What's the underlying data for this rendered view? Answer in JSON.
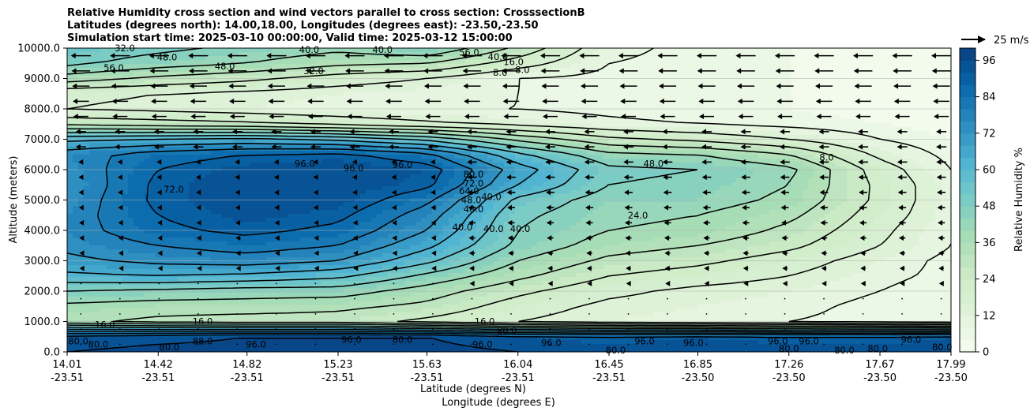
{
  "chart_data": {
    "type": "heatmap",
    "title_lines": [
      "Relative Humidity cross section and wind vectors parallel to cross section: CrosssectionB",
      "Latitudes (degrees north): 14.00,18.00, Longitudes (degrees east): -23.50,-23.50",
      "Simulation start time: 2025-03-10 00:00:00, Valid time: 2025-03-12 15:00:00"
    ],
    "xlabel": "Latitude (degrees N)",
    "xlabel2": "Longitude (degrees E)",
    "ylabel": "Altitude (meters)",
    "ylim": [
      0,
      10000
    ],
    "xlim": [
      14.01,
      17.99
    ],
    "grid": "horizontal",
    "y_ticks": [
      0,
      1000,
      2000,
      3000,
      4000,
      5000,
      6000,
      7000,
      8000,
      9000,
      10000
    ],
    "y_tick_labels": [
      "0.0",
      "1000.0",
      "2000.0",
      "3000.0",
      "4000.0",
      "5000.0",
      "6000.0",
      "7000.0",
      "8000.0",
      "9000.0",
      "10000.0"
    ],
    "x_ticks": [
      {
        "lat": 14.01,
        "lat_label": "14.01",
        "lon_label": "-23.51"
      },
      {
        "lat": 14.42,
        "lat_label": "14.42",
        "lon_label": "-23.51"
      },
      {
        "lat": 14.82,
        "lat_label": "14.82",
        "lon_label": "-23.51"
      },
      {
        "lat": 15.23,
        "lat_label": "15.23",
        "lon_label": "-23.51"
      },
      {
        "lat": 15.63,
        "lat_label": "15.63",
        "lon_label": "-23.51"
      },
      {
        "lat": 16.04,
        "lat_label": "16.04",
        "lon_label": "-23.51"
      },
      {
        "lat": 16.45,
        "lat_label": "16.45",
        "lon_label": "-23.51"
      },
      {
        "lat": 16.85,
        "lat_label": "16.85",
        "lon_label": "-23.50"
      },
      {
        "lat": 17.26,
        "lat_label": "17.26",
        "lon_label": "-23.50"
      },
      {
        "lat": 17.67,
        "lat_label": "17.67",
        "lon_label": "-23.50"
      },
      {
        "lat": 17.99,
        "lat_label": "17.99",
        "lon_label": "-23.50"
      }
    ],
    "colorbar": {
      "label": "Relative Humidity %",
      "min": 0,
      "max": 100,
      "step": 4,
      "ticks": [
        0,
        12,
        24,
        36,
        48,
        60,
        72,
        84,
        96
      ],
      "tick_labels": [
        "0",
        "12",
        "24",
        "36",
        "48",
        "60",
        "72",
        "84",
        "96"
      ]
    },
    "quiver_key": {
      "label": "25 m/s"
    },
    "rh_field": {
      "lats": [
        14.01,
        14.42,
        14.82,
        15.23,
        15.63,
        16.04,
        16.45,
        16.85,
        17.26,
        17.67,
        17.99
      ],
      "alts": [
        0,
        500,
        1000,
        1500,
        2000,
        2500,
        3000,
        3500,
        4000,
        4500,
        5000,
        5500,
        6000,
        6500,
        7000,
        7500,
        8000,
        8500,
        9000,
        9500,
        10000
      ],
      "values": [
        [
          96,
          98,
          98,
          98,
          98,
          96,
          94,
          95,
          94,
          94,
          94
        ],
        [
          92,
          94,
          96,
          96,
          96,
          92,
          90,
          92,
          90,
          90,
          92
        ],
        [
          34,
          30,
          28,
          28,
          22,
          16,
          12,
          10,
          8,
          6,
          4
        ],
        [
          38,
          36,
          36,
          34,
          30,
          20,
          14,
          12,
          10,
          6,
          4
        ],
        [
          48,
          46,
          44,
          44,
          36,
          26,
          18,
          14,
          12,
          8,
          4
        ],
        [
          62,
          64,
          62,
          58,
          46,
          34,
          24,
          20,
          16,
          10,
          6
        ],
        [
          70,
          74,
          76,
          72,
          58,
          40,
          30,
          26,
          20,
          12,
          6
        ],
        [
          74,
          80,
          84,
          80,
          66,
          46,
          36,
          32,
          26,
          16,
          8
        ],
        [
          76,
          86,
          90,
          86,
          72,
          48,
          40,
          38,
          30,
          18,
          8
        ],
        [
          76,
          88,
          94,
          90,
          76,
          50,
          42,
          40,
          34,
          20,
          10
        ],
        [
          74,
          90,
          96,
          94,
          82,
          54,
          44,
          44,
          38,
          22,
          10
        ],
        [
          72,
          90,
          96,
          96,
          90,
          64,
          48,
          46,
          40,
          22,
          10
        ],
        [
          74,
          88,
          94,
          96,
          92,
          68,
          50,
          48,
          42,
          20,
          8
        ],
        [
          76,
          84,
          88,
          90,
          82,
          58,
          42,
          40,
          32,
          14,
          6
        ],
        [
          62,
          64,
          66,
          62,
          54,
          38,
          26,
          22,
          16,
          8,
          4
        ],
        [
          30,
          28,
          26,
          22,
          18,
          14,
          10,
          8,
          6,
          4,
          2
        ],
        [
          16,
          14,
          12,
          10,
          8,
          8,
          6,
          4,
          4,
          2,
          2
        ],
        [
          18,
          16,
          14,
          12,
          10,
          8,
          6,
          4,
          4,
          2,
          2
        ],
        [
          36,
          30,
          26,
          20,
          16,
          8,
          6,
          4,
          4,
          2,
          2
        ],
        [
          50,
          44,
          40,
          34,
          32,
          20,
          8,
          6,
          4,
          2,
          2
        ],
        [
          54,
          50,
          46,
          42,
          48,
          30,
          10,
          6,
          4,
          2,
          2
        ]
      ]
    },
    "contour_labels": [
      {
        "text": "48.0",
        "lat": 14.46,
        "alt": 9700
      },
      {
        "text": "32.0",
        "lat": 14.27,
        "alt": 10000
      },
      {
        "text": "56.0",
        "lat": 14.22,
        "alt": 9350
      },
      {
        "text": "48.0",
        "lat": 14.72,
        "alt": 9400
      },
      {
        "text": "40.0",
        "lat": 15.1,
        "alt": 9950
      },
      {
        "text": "32.0",
        "lat": 15.12,
        "alt": 9250
      },
      {
        "text": "40.0",
        "lat": 15.43,
        "alt": 9950
      },
      {
        "text": "56.0",
        "lat": 15.82,
        "alt": 9860
      },
      {
        "text": "40.0",
        "lat": 15.95,
        "alt": 9720
      },
      {
        "text": "16.0",
        "lat": 16.02,
        "alt": 9550
      },
      {
        "text": "8.0",
        "lat": 15.96,
        "alt": 9200
      },
      {
        "text": "8.0",
        "lat": 16.06,
        "alt": 9280
      },
      {
        "text": "96.0",
        "lat": 15.08,
        "alt": 6200
      },
      {
        "text": "96.0",
        "lat": 15.3,
        "alt": 6050
      },
      {
        "text": "96.0",
        "lat": 15.52,
        "alt": 6150
      },
      {
        "text": "72.0",
        "lat": 14.49,
        "alt": 5350
      },
      {
        "text": "80.0",
        "lat": 15.84,
        "alt": 5850
      },
      {
        "text": "72.0",
        "lat": 15.84,
        "alt": 5550
      },
      {
        "text": "64.0",
        "lat": 15.82,
        "alt": 5300
      },
      {
        "text": "48.0",
        "lat": 15.83,
        "alt": 5000
      },
      {
        "text": "40.0",
        "lat": 15.92,
        "alt": 5100
      },
      {
        "text": "40.0",
        "lat": 15.84,
        "alt": 4700
      },
      {
        "text": "40.0",
        "lat": 15.79,
        "alt": 4100
      },
      {
        "text": "40.0",
        "lat": 15.93,
        "alt": 4050
      },
      {
        "text": "40.0",
        "lat": 16.05,
        "alt": 4050
      },
      {
        "text": "48.0",
        "lat": 16.65,
        "alt": 6200
      },
      {
        "text": "24.0",
        "lat": 16.58,
        "alt": 4500
      },
      {
        "text": "8.0",
        "lat": 17.43,
        "alt": 6400
      },
      {
        "text": "16.0",
        "lat": 14.18,
        "alt": 900
      },
      {
        "text": "16.0",
        "lat": 14.62,
        "alt": 1000
      },
      {
        "text": "16.0",
        "lat": 15.89,
        "alt": 1000
      },
      {
        "text": "80.0",
        "lat": 14.06,
        "alt": 350
      },
      {
        "text": "80.0",
        "lat": 14.15,
        "alt": 250
      },
      {
        "text": "80.0",
        "lat": 14.47,
        "alt": 150
      },
      {
        "text": "88.0",
        "lat": 14.62,
        "alt": 350
      },
      {
        "text": "96.0",
        "lat": 14.86,
        "alt": 250
      },
      {
        "text": "96.0",
        "lat": 15.29,
        "alt": 400
      },
      {
        "text": "80.0",
        "lat": 15.52,
        "alt": 400
      },
      {
        "text": "96.0",
        "lat": 15.88,
        "alt": 250
      },
      {
        "text": "80.0",
        "lat": 15.99,
        "alt": 700
      },
      {
        "text": "96.0",
        "lat": 16.19,
        "alt": 300
      },
      {
        "text": "80.0",
        "lat": 16.48,
        "alt": 50
      },
      {
        "text": "96.0",
        "lat": 16.61,
        "alt": 350
      },
      {
        "text": "96.0",
        "lat": 16.83,
        "alt": 300
      },
      {
        "text": "80.0",
        "lat": 17.26,
        "alt": 100
      },
      {
        "text": "96.0",
        "lat": 17.21,
        "alt": 350
      },
      {
        "text": "96.0",
        "lat": 17.35,
        "alt": 350
      },
      {
        "text": "80.0",
        "lat": 17.51,
        "alt": 50
      },
      {
        "text": "80.0",
        "lat": 17.66,
        "alt": 100
      },
      {
        "text": "96.0",
        "lat": 17.81,
        "alt": 400
      },
      {
        "text": "80.0",
        "lat": 17.95,
        "alt": 150
      }
    ]
  }
}
